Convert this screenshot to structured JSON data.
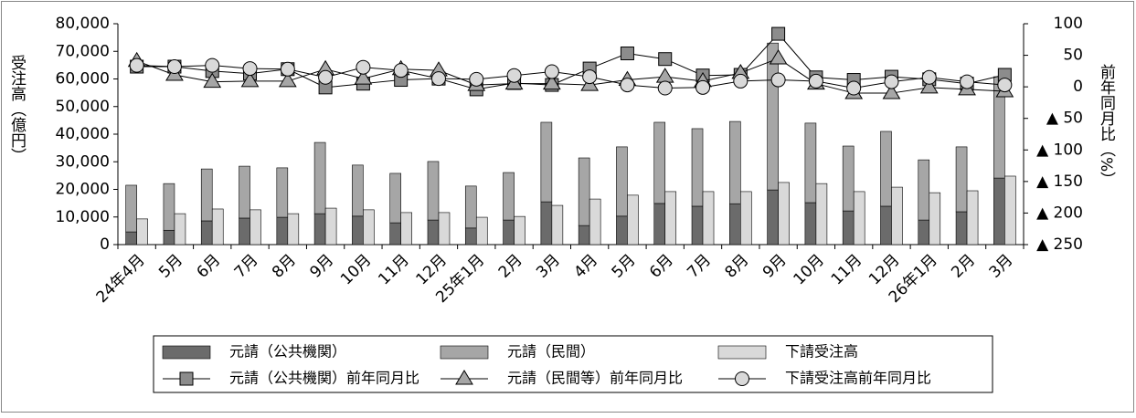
{
  "chart_data": {
    "type": "bar_line",
    "categories": [
      "24年4月",
      "5月",
      "6月",
      "7月",
      "8月",
      "9月",
      "10月",
      "11月",
      "12月",
      "25年1月",
      "2月",
      "3月",
      "4月",
      "5月",
      "6月",
      "7月",
      "8月",
      "9月",
      "10月",
      "11月",
      "12月",
      "26年1月",
      "2月",
      "3月"
    ],
    "ylabel": "受注高（億円）",
    "y2label": "前年同月比（%）",
    "ylim": [
      0,
      80000
    ],
    "yticks": [
      0,
      {
        "value": 10000,
        "label": "10,000"
      },
      {
        "value": 20000,
        "label": "20,000"
      },
      {
        "value": 30000,
        "label": "30,000"
      },
      {
        "value": 40000,
        "label": "40,000"
      },
      {
        "value": 50000,
        "label": "50,000"
      },
      {
        "value": 60000,
        "label": "60,000"
      },
      {
        "value": 70000,
        "label": "70,000"
      },
      {
        "value": 80000,
        "label": "80,000"
      }
    ],
    "y2lim": [
      -250,
      100
    ],
    "y2ticks": [
      {
        "value": -250,
        "label": "▲ 250"
      },
      {
        "value": -200,
        "label": "▲ 200"
      },
      {
        "value": -150,
        "label": "▲ 150"
      },
      {
        "value": -100,
        "label": "▲ 100"
      },
      {
        "value": -50,
        "label": "▲ 50"
      },
      0,
      50,
      100
    ],
    "series": [
      {
        "name": "元請（公共機関）",
        "kind": "bar",
        "stack": "a",
        "color": "#6b6b6b",
        "values": [
          4600,
          5200,
          8600,
          9600,
          9900,
          11200,
          10300,
          7900,
          8900,
          6000,
          8900,
          15500,
          6900,
          10300,
          14900,
          13900,
          14800,
          19800,
          15200,
          12200,
          13900,
          8900,
          11900,
          24100
        ]
      },
      {
        "name": "元請（民間）",
        "kind": "bar",
        "stack": "a",
        "color": "#a6a6a6",
        "values": [
          16900,
          16900,
          18800,
          18800,
          17900,
          25800,
          18500,
          17900,
          21200,
          15200,
          17200,
          28800,
          24500,
          25100,
          29400,
          28100,
          29800,
          53200,
          28800,
          23500,
          27100,
          21800,
          23500,
          36700
        ]
      },
      {
        "name": "下請受注高",
        "kind": "bar",
        "stack": "b",
        "color": "#d9d9d9",
        "values": [
          9300,
          11200,
          12900,
          12600,
          11200,
          13200,
          12600,
          11600,
          11600,
          9900,
          10200,
          14200,
          16500,
          17900,
          19200,
          19200,
          19200,
          22500,
          22100,
          19200,
          20800,
          18800,
          19500,
          24800
        ]
      },
      {
        "name": "元請（公共機関）前年同月比",
        "kind": "line",
        "axis": "y2",
        "marker": "square",
        "color": "#8c8c8c",
        "values": [
          32,
          32,
          25,
          21,
          28,
          -1,
          5,
          11,
          13,
          -4,
          6,
          3,
          29,
          53,
          44,
          18,
          19,
          84,
          15,
          11,
          16,
          12,
          5,
          19
        ]
      },
      {
        "name": "元請（民間等）前年同月比",
        "kind": "line",
        "axis": "y2",
        "marker": "triangle",
        "color": "#a6a6a6",
        "values": [
          41,
          19,
          8,
          9,
          9,
          28,
          13,
          28,
          26,
          3,
          5,
          5,
          3,
          11,
          16,
          9,
          22,
          45,
          5,
          -10,
          -10,
          -1,
          -4,
          -7
        ]
      },
      {
        "name": "下請受注高前年同月比",
        "kind": "line",
        "axis": "y2",
        "marker": "circle",
        "color": "#d9d9d9",
        "values": [
          34,
          32,
          34,
          29,
          28,
          15,
          31,
          26,
          13,
          12,
          18,
          24,
          16,
          3,
          -2,
          -1,
          9,
          11,
          9,
          -2,
          8,
          15,
          8,
          3
        ]
      }
    ]
  }
}
